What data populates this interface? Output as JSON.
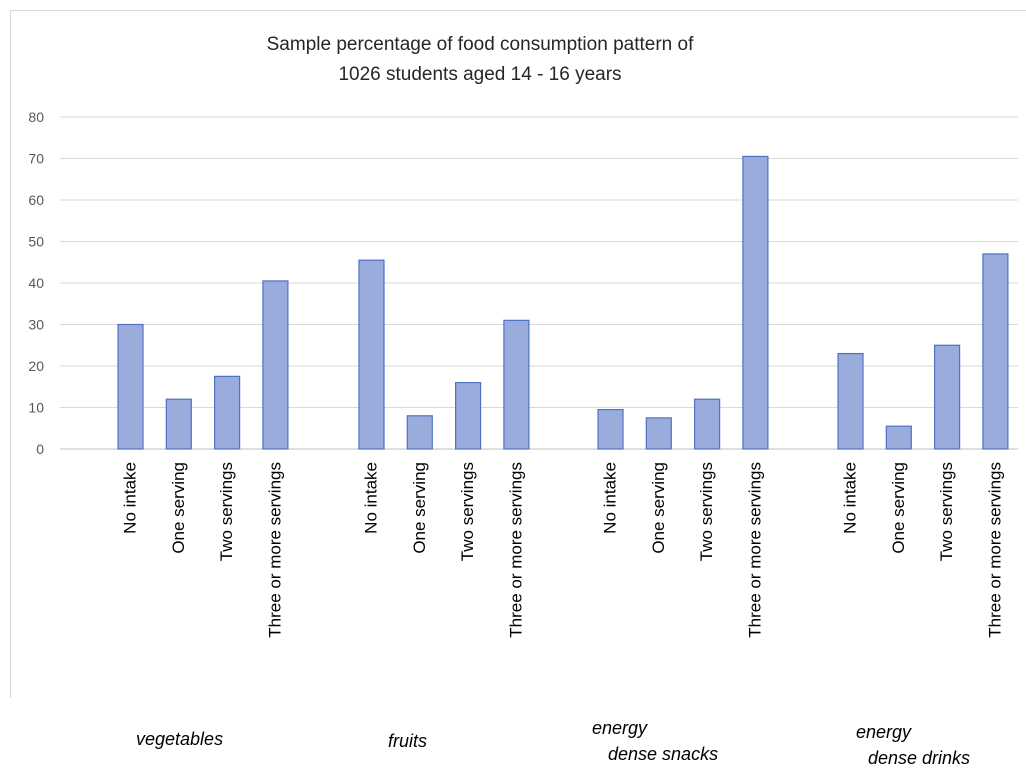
{
  "chart_data": {
    "type": "bar",
    "title": [
      "Sample percentage of food consumption  pattern of",
      "1026 students aged 14 - 16 years"
    ],
    "ylim": [
      0,
      80
    ],
    "yticks": [
      0,
      10,
      20,
      30,
      40,
      50,
      60,
      70,
      80
    ],
    "grid": true,
    "bar_color": "#9aacdc",
    "bar_edge_color": "#4f71c6",
    "groups": [
      {
        "label_lines": [
          "vegetables"
        ],
        "categories": [
          "No intake",
          "One serving",
          "Two servings",
          "Three or more servings"
        ],
        "values": [
          30,
          12,
          17.5,
          40.5
        ]
      },
      {
        "label_lines": [
          "fruits"
        ],
        "categories": [
          "No intake",
          "One serving",
          "Two servings",
          "Three or more servings"
        ],
        "values": [
          45.5,
          8,
          16,
          31
        ]
      },
      {
        "label_lines": [
          "energy",
          "dense snacks"
        ],
        "categories": [
          "No intake",
          "One serving",
          "Two servings",
          "Three or more servings"
        ],
        "values": [
          9.5,
          7.5,
          12,
          70.5
        ]
      },
      {
        "label_lines": [
          "energy",
          "dense drinks"
        ],
        "categories": [
          "No intake",
          "One serving",
          "Two servings",
          "Three or more servings"
        ],
        "values": [
          23,
          5.5,
          25,
          47
        ]
      }
    ]
  }
}
